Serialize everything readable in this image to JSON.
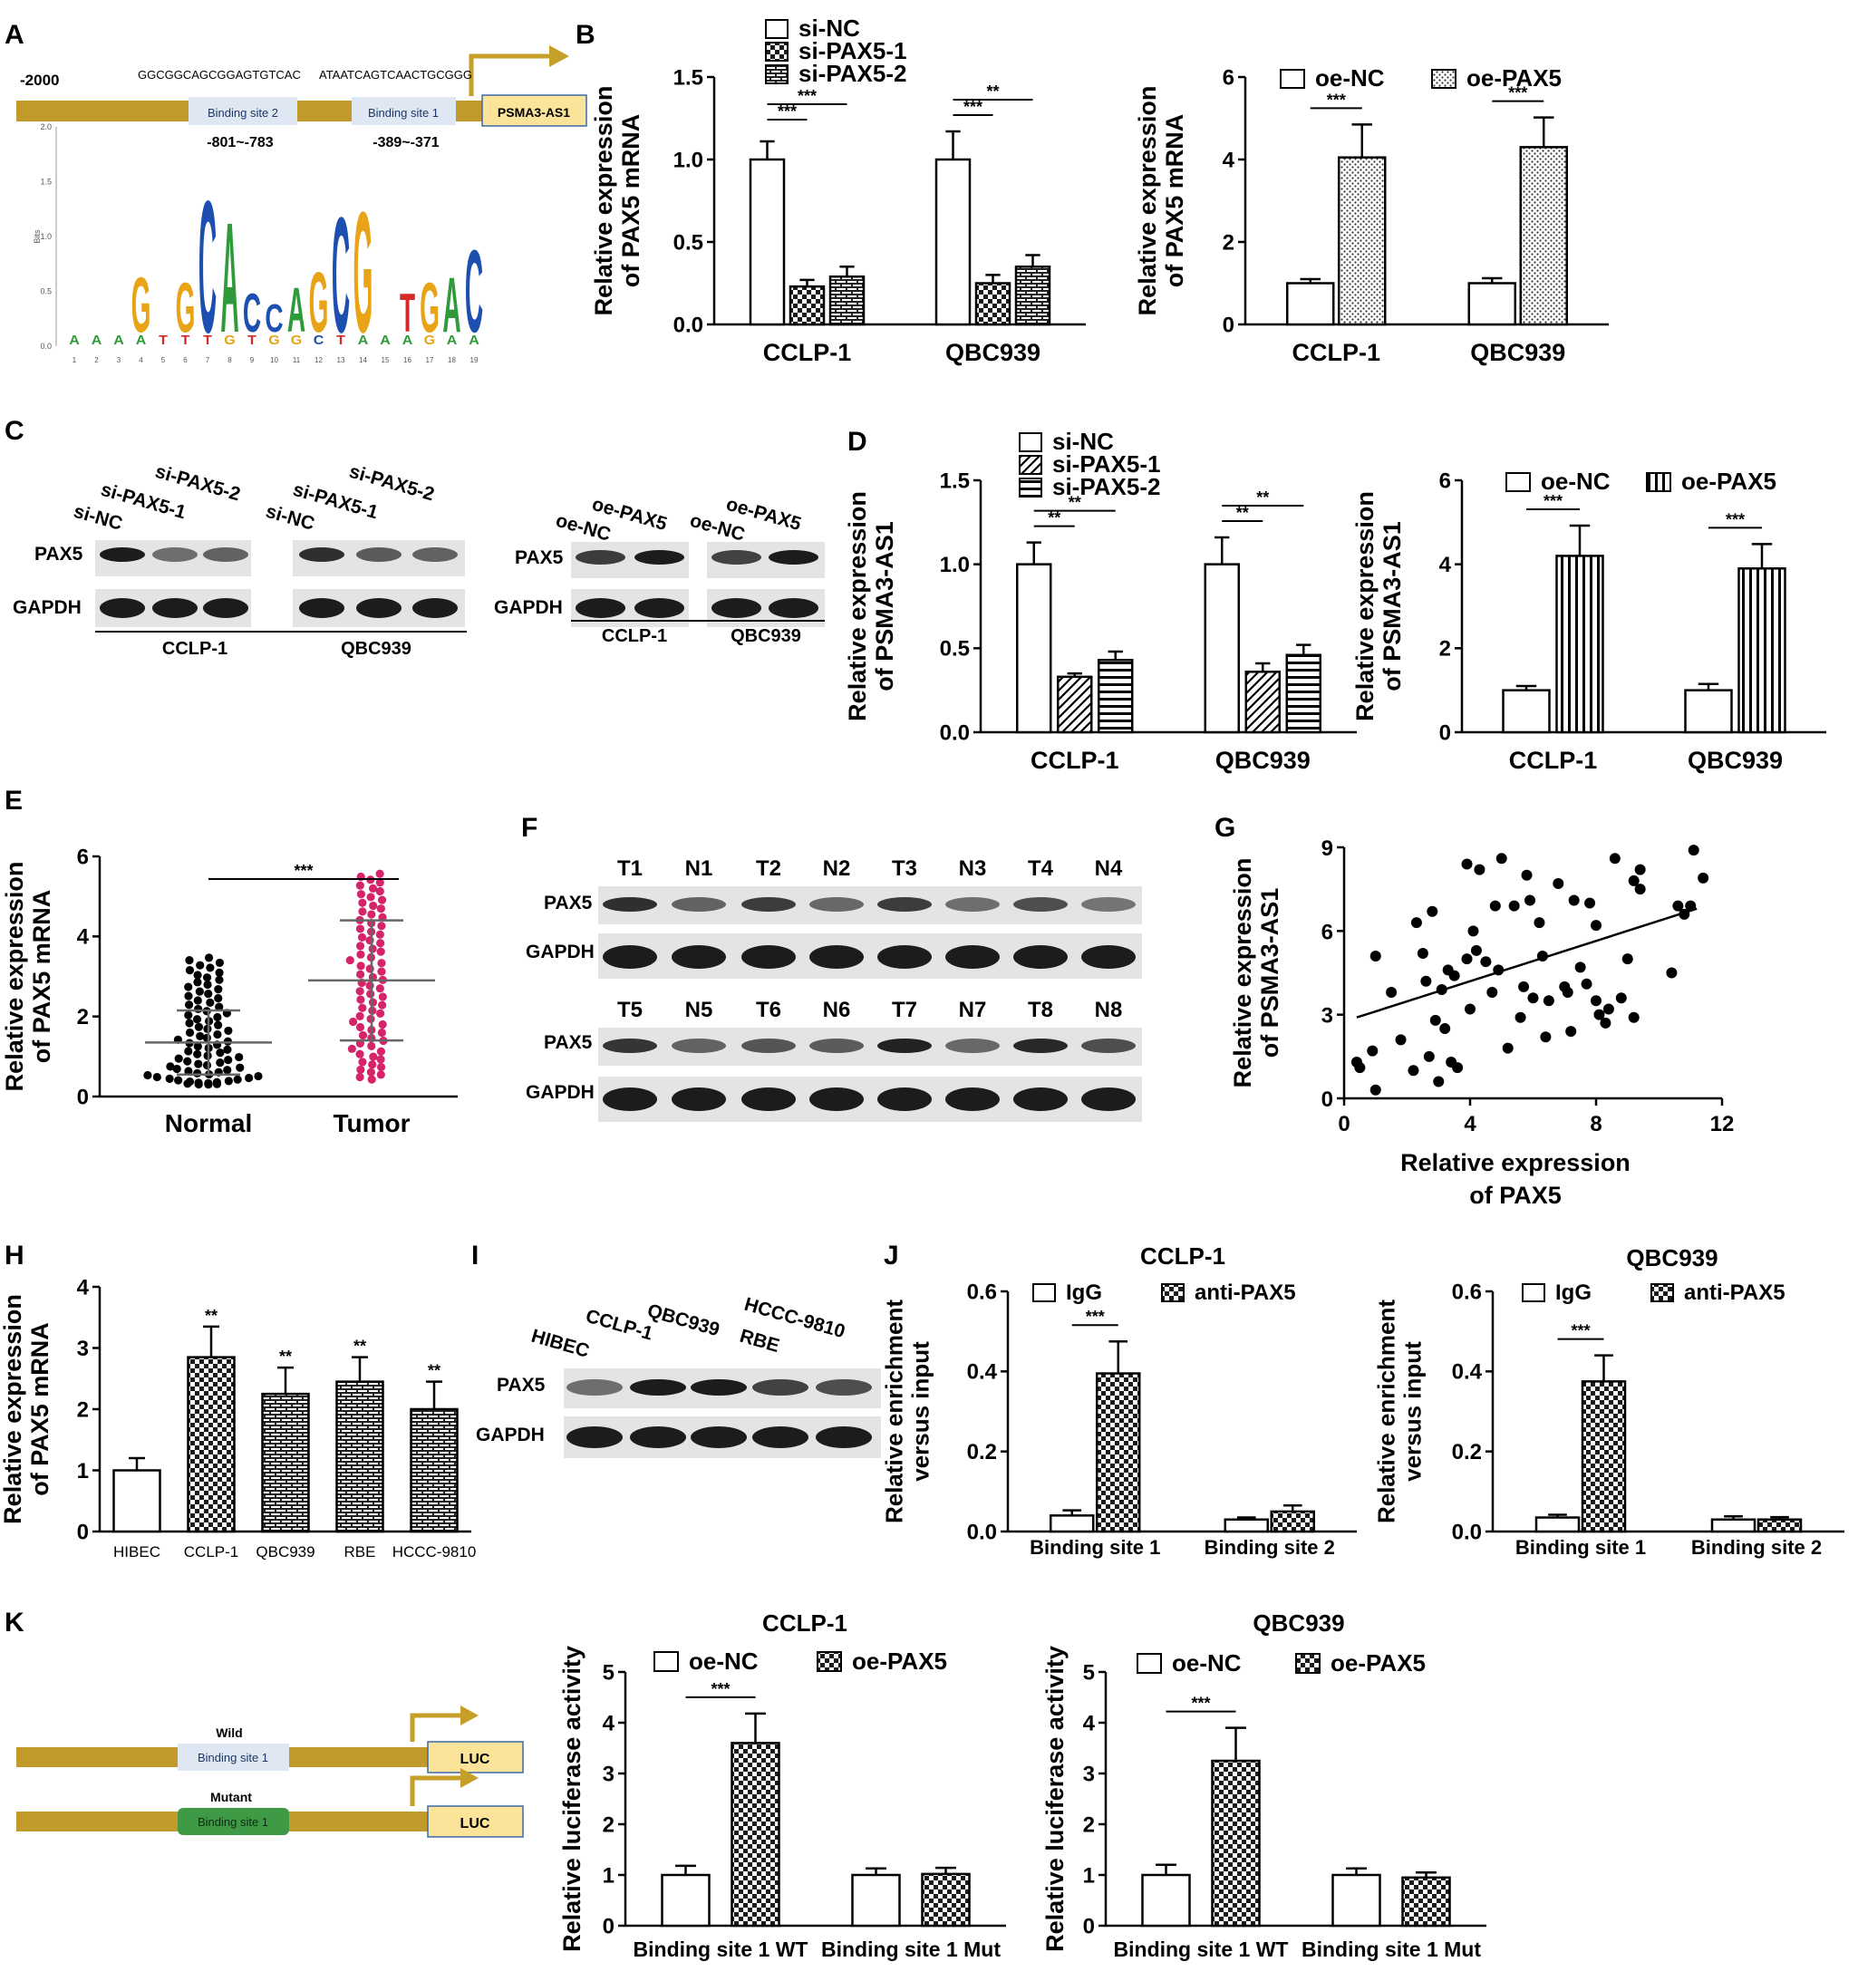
{
  "colors": {
    "promoter": "#c09a2b",
    "arrow": "#c59f28",
    "gene_box": "#fbe49a",
    "site_box": "#dfe7f3",
    "mutant_box": "#3f9a45",
    "tumor": "#d6246a"
  },
  "panels": {
    "A": "A",
    "B": "B",
    "C": "C",
    "D": "D",
    "E": "E",
    "F": "F",
    "G": "G",
    "H": "H",
    "I": "I",
    "J": "J",
    "K": "K"
  },
  "promoter_map": {
    "start": "-2000",
    "seq2": "GGCGGCAGCGGAGTGTCAC",
    "seq1": "ATAATCAGTCAACTGCGGG",
    "site2": "Binding site 2",
    "site1": "Binding site 1",
    "gene": "PSMA3-AS1",
    "pos2": "-801~-783",
    "pos1": "-389~-371"
  },
  "motif": {
    "ylabel": "Bits",
    "yticks": [
      "2.0",
      "1.5",
      "1.0",
      "0.5",
      "0.0"
    ],
    "positions": [
      "1",
      "2",
      "3",
      "4",
      "5",
      "6",
      "7",
      "8",
      "9",
      "10",
      "11",
      "12",
      "13",
      "14",
      "15",
      "16",
      "17",
      "18",
      "19"
    ],
    "top_letters": [
      "",
      "",
      "",
      "G",
      "",
      "G",
      "C",
      "A",
      "C",
      "C",
      "A",
      "G",
      "C",
      "G",
      "",
      "T",
      "G",
      "A",
      "C"
    ],
    "sub_letters": [
      "A",
      "A",
      "A",
      "A",
      "T",
      "T",
      "T",
      "G",
      "T",
      "G",
      "G",
      "C",
      "T",
      "A",
      "A",
      "A",
      "G",
      "A",
      "A"
    ]
  },
  "blots": {
    "C_left": {
      "lanes": [
        "si-NC",
        "si-PAX5-1",
        "si-PAX5-2",
        "si-NC",
        "si-PAX5-1",
        "si-PAX5-2"
      ],
      "rows": [
        "PAX5",
        "GAPDH"
      ],
      "groups": [
        "CCLP-1",
        "QBC939"
      ]
    },
    "C_right": {
      "lanes": [
        "oe-NC",
        "oe-PAX5",
        "oe-NC",
        "oe-PAX5"
      ],
      "rows": [
        "PAX5",
        "GAPDH"
      ],
      "groups": [
        "CCLP-1",
        "QBC939"
      ]
    },
    "F": {
      "row1": [
        "T1",
        "N1",
        "T2",
        "N2",
        "T3",
        "N3",
        "T4",
        "N4"
      ],
      "row2": [
        "T5",
        "N5",
        "T6",
        "N6",
        "T7",
        "N7",
        "T8",
        "N8"
      ],
      "rows": [
        "PAX5",
        "GAPDH"
      ]
    },
    "I": {
      "lanes": [
        "HIBEC",
        "CCLP-1",
        "QBC939",
        "RBE",
        "HCCC-9810"
      ],
      "rows": [
        "PAX5",
        "GAPDH"
      ]
    }
  },
  "constructs": {
    "wild": "Wild",
    "mutant": "Mutant",
    "site": "Binding site 1",
    "gene": "LUC"
  },
  "chart_data": [
    {
      "id": "B_si",
      "type": "bar",
      "categories": [
        "CCLP-1",
        "QBC939"
      ],
      "ylabel": "Relative expression\nof PAX5 mRNA",
      "ylim": [
        0,
        1.5
      ],
      "ticks": [
        "0.0",
        "0.5",
        "1.0",
        "1.5"
      ],
      "series": [
        {
          "name": "si-NC",
          "pattern": "white",
          "values": [
            1.0,
            1.0
          ],
          "err": [
            0.11,
            0.17
          ]
        },
        {
          "name": "si-PAX5-1",
          "pattern": "checker",
          "values": [
            0.23,
            0.25
          ],
          "err": [
            0.04,
            0.05
          ]
        },
        {
          "name": "si-PAX5-2",
          "pattern": "brick",
          "values": [
            0.29,
            0.35
          ],
          "err": [
            0.06,
            0.07
          ]
        }
      ],
      "sig": [
        {
          "g": 0,
          "a": 0,
          "b": 1,
          "t": "***",
          "lvl": 0
        },
        {
          "g": 0,
          "a": 0,
          "b": 2,
          "t": "***",
          "lvl": 1
        },
        {
          "g": 1,
          "a": 0,
          "b": 1,
          "t": "***",
          "lvl": 0
        },
        {
          "g": 1,
          "a": 0,
          "b": 2,
          "t": "**",
          "lvl": 1
        }
      ]
    },
    {
      "id": "B_oe",
      "type": "bar",
      "categories": [
        "CCLP-1",
        "QBC939"
      ],
      "ylabel": "Relative expression\nof PAX5 mRNA",
      "ylim": [
        0,
        6
      ],
      "ticks": [
        "0",
        "2",
        "4",
        "6"
      ],
      "series": [
        {
          "name": "oe-NC",
          "pattern": "white",
          "values": [
            1.0,
            1.0
          ],
          "err": [
            0.1,
            0.12
          ]
        },
        {
          "name": "oe-PAX5",
          "pattern": "dots",
          "values": [
            4.05,
            4.3
          ],
          "err": [
            0.8,
            0.72
          ]
        }
      ],
      "sig": [
        {
          "g": 0,
          "a": 0,
          "b": 1,
          "t": "***",
          "lvl": 0
        },
        {
          "g": 1,
          "a": 0,
          "b": 1,
          "t": "***",
          "lvl": 0
        }
      ]
    },
    {
      "id": "D_si",
      "type": "bar",
      "categories": [
        "CCLP-1",
        "QBC939"
      ],
      "ylabel": "Relative expression\nof PSMA3-AS1",
      "ylim": [
        0,
        1.5
      ],
      "ticks": [
        "0.0",
        "0.5",
        "1.0",
        "1.5"
      ],
      "series": [
        {
          "name": "si-NC",
          "pattern": "white",
          "values": [
            1.0,
            1.0
          ],
          "err": [
            0.13,
            0.16
          ]
        },
        {
          "name": "si-PAX5-1",
          "pattern": "diag",
          "values": [
            0.33,
            0.36
          ],
          "err": [
            0.02,
            0.05
          ]
        },
        {
          "name": "si-PAX5-2",
          "pattern": "hlines",
          "values": [
            0.43,
            0.46
          ],
          "err": [
            0.05,
            0.06
          ]
        }
      ],
      "sig": [
        {
          "g": 0,
          "a": 0,
          "b": 1,
          "t": "**",
          "lvl": 0
        },
        {
          "g": 0,
          "a": 0,
          "b": 2,
          "t": "**",
          "lvl": 1
        },
        {
          "g": 1,
          "a": 0,
          "b": 1,
          "t": "**",
          "lvl": 0
        },
        {
          "g": 1,
          "a": 0,
          "b": 2,
          "t": "**",
          "lvl": 1
        }
      ]
    },
    {
      "id": "D_oe",
      "type": "bar",
      "categories": [
        "CCLP-1",
        "QBC939"
      ],
      "ylabel": "Relative expression\nof PSMA3-AS1",
      "ylim": [
        0,
        6
      ],
      "ticks": [
        "0",
        "2",
        "4",
        "6"
      ],
      "series": [
        {
          "name": "oe-NC",
          "pattern": "white",
          "values": [
            1.0,
            1.0
          ],
          "err": [
            0.1,
            0.15
          ]
        },
        {
          "name": "oe-PAX5",
          "pattern": "vlines",
          "values": [
            4.2,
            3.9
          ],
          "err": [
            0.72,
            0.58
          ]
        }
      ],
      "sig": [
        {
          "g": 0,
          "a": 0,
          "b": 1,
          "t": "***",
          "lvl": 0
        },
        {
          "g": 1,
          "a": 0,
          "b": 1,
          "t": "***",
          "lvl": 0
        }
      ]
    },
    {
      "id": "E",
      "type": "scatter",
      "categories": [
        "Normal",
        "Tumor"
      ],
      "ylabel": "Relative expression\nof PAX5 mRNA",
      "ylim": [
        0,
        6
      ],
      "ticks": [
        "0",
        "2",
        "4",
        "6"
      ],
      "groups": [
        {
          "name": "Normal",
          "mean": 1.35,
          "sd": 0.8,
          "min": 0.3,
          "max": 3.5,
          "n": 80,
          "color": "#000000"
        },
        {
          "name": "Tumor",
          "mean": 2.9,
          "sd": 1.5,
          "min": 0.4,
          "max": 5.6,
          "n": 75,
          "color": "#d6246a"
        }
      ],
      "sig": "***"
    },
    {
      "id": "G",
      "type": "scatter",
      "xlabel": "Relative expression\nof PAX5",
      "ylabel": "Relative expression\nof PSMA3-AS1",
      "xlim": [
        0,
        12
      ],
      "ylim": [
        0,
        9
      ],
      "xticks": [
        "0",
        "4",
        "8",
        "12"
      ],
      "yticks": [
        "0",
        "3",
        "6",
        "9"
      ],
      "fit": {
        "x0": 0.4,
        "y0": 2.9,
        "x1": 11.2,
        "y1": 6.8
      },
      "points": [
        [
          0.4,
          1.3
        ],
        [
          0.5,
          1.1
        ],
        [
          0.9,
          1.7
        ],
        [
          1.0,
          0.3
        ],
        [
          1.0,
          5.1
        ],
        [
          1.5,
          3.8
        ],
        [
          1.8,
          2.1
        ],
        [
          2.2,
          1.0
        ],
        [
          2.3,
          6.3
        ],
        [
          2.5,
          5.2
        ],
        [
          2.6,
          4.2
        ],
        [
          2.7,
          1.5
        ],
        [
          2.8,
          6.7
        ],
        [
          2.9,
          2.8
        ],
        [
          3.0,
          0.6
        ],
        [
          3.1,
          3.9
        ],
        [
          3.2,
          2.5
        ],
        [
          3.3,
          4.6
        ],
        [
          3.4,
          1.3
        ],
        [
          3.5,
          4.4
        ],
        [
          3.6,
          1.1
        ],
        [
          3.9,
          8.4
        ],
        [
          3.9,
          5.0
        ],
        [
          4.0,
          3.2
        ],
        [
          4.1,
          6.0
        ],
        [
          4.2,
          5.3
        ],
        [
          4.3,
          8.2
        ],
        [
          4.5,
          4.9
        ],
        [
          4.7,
          3.8
        ],
        [
          4.8,
          6.9
        ],
        [
          4.9,
          4.6
        ],
        [
          5.0,
          8.6
        ],
        [
          5.2,
          1.8
        ],
        [
          5.4,
          6.9
        ],
        [
          5.6,
          2.9
        ],
        [
          5.7,
          4.0
        ],
        [
          5.8,
          8.0
        ],
        [
          5.9,
          7.1
        ],
        [
          6.0,
          3.6
        ],
        [
          6.2,
          6.3
        ],
        [
          6.3,
          5.1
        ],
        [
          6.4,
          2.2
        ],
        [
          6.5,
          3.5
        ],
        [
          6.8,
          7.7
        ],
        [
          7.0,
          4.0
        ],
        [
          7.1,
          3.8
        ],
        [
          7.2,
          2.4
        ],
        [
          7.3,
          7.1
        ],
        [
          7.5,
          4.7
        ],
        [
          7.7,
          4.1
        ],
        [
          7.8,
          7.0
        ],
        [
          8.0,
          6.2
        ],
        [
          8.0,
          3.5
        ],
        [
          8.1,
          3.0
        ],
        [
          8.3,
          2.7
        ],
        [
          8.4,
          3.2
        ],
        [
          8.6,
          8.6
        ],
        [
          8.8,
          3.6
        ],
        [
          9.0,
          5.0
        ],
        [
          9.2,
          2.9
        ],
        [
          9.2,
          7.8
        ],
        [
          9.4,
          8.2
        ],
        [
          9.4,
          7.5
        ],
        [
          10.4,
          4.5
        ],
        [
          10.6,
          6.9
        ],
        [
          10.8,
          6.6
        ],
        [
          11.0,
          6.9
        ],
        [
          11.1,
          8.9
        ],
        [
          11.4,
          7.9
        ]
      ]
    },
    {
      "id": "H",
      "type": "bar",
      "categories": [
        "HIBEC",
        "CCLP-1",
        "QBC939",
        "RBE",
        "HCCC-9810"
      ],
      "ylabel": "Relative expression\nof PAX5 mRNA",
      "ylim": [
        0,
        4
      ],
      "ticks": [
        "0",
        "1",
        "2",
        "3",
        "4"
      ],
      "values": [
        1.0,
        2.85,
        2.25,
        2.45,
        2.0
      ],
      "err": [
        0.2,
        0.5,
        0.43,
        0.4,
        0.45
      ],
      "patterns": [
        "white",
        "checker",
        "brick",
        "brick",
        "brick"
      ],
      "stars": [
        "",
        "**",
        "**",
        "**",
        "**"
      ]
    },
    {
      "id": "J_c",
      "type": "bar",
      "title": "CCLP-1",
      "categories": [
        "Binding site 1",
        "Binding site 2"
      ],
      "ylabel": "Relative enrichment\nversus input",
      "ylim": [
        0,
        0.6
      ],
      "ticks": [
        "0.0",
        "0.2",
        "0.4",
        "0.6"
      ],
      "series": [
        {
          "name": "IgG",
          "pattern": "white",
          "values": [
            0.04,
            0.03
          ],
          "err": [
            0.013,
            0.005
          ]
        },
        {
          "name": "anti-PAX5",
          "pattern": "checker",
          "values": [
            0.395,
            0.05
          ],
          "err": [
            0.08,
            0.015
          ]
        }
      ],
      "sig": [
        {
          "g": 0,
          "a": 0,
          "b": 1,
          "t": "***",
          "lvl": 0
        }
      ]
    },
    {
      "id": "J_q",
      "type": "bar",
      "title": "QBC939",
      "categories": [
        "Binding site 1",
        "Binding site 2"
      ],
      "ylabel": "Relative enrichment\nversus input",
      "ylim": [
        0,
        0.6
      ],
      "ticks": [
        "0.0",
        "0.2",
        "0.4",
        "0.6"
      ],
      "series": [
        {
          "name": "IgG",
          "pattern": "white",
          "values": [
            0.035,
            0.03
          ],
          "err": [
            0.007,
            0.008
          ]
        },
        {
          "name": "anti-PAX5",
          "pattern": "checker",
          "values": [
            0.375,
            0.03
          ],
          "err": [
            0.065,
            0.006
          ]
        }
      ],
      "sig": [
        {
          "g": 0,
          "a": 0,
          "b": 1,
          "t": "***",
          "lvl": 0
        }
      ]
    },
    {
      "id": "K_c",
      "type": "bar",
      "title": "CCLP-1",
      "categories": [
        "Binding site 1 WT",
        "Binding site 1 Mut"
      ],
      "ylabel": "Relative luciferase activity",
      "ylim": [
        0,
        5
      ],
      "ticks": [
        "0",
        "1",
        "2",
        "3",
        "4",
        "5"
      ],
      "series": [
        {
          "name": "oe-NC",
          "pattern": "white",
          "values": [
            1.0,
            1.0
          ],
          "err": [
            0.18,
            0.13
          ]
        },
        {
          "name": "oe-PAX5",
          "pattern": "checker",
          "values": [
            3.6,
            1.02
          ],
          "err": [
            0.58,
            0.12
          ]
        }
      ],
      "sig": [
        {
          "g": 0,
          "a": 0,
          "b": 1,
          "t": "***",
          "lvl": 0
        }
      ]
    },
    {
      "id": "K_q",
      "type": "bar",
      "title": "QBC939",
      "categories": [
        "Binding site 1 WT",
        "Binding site 1 Mut"
      ],
      "ylabel": "Relative luciferase activity",
      "ylim": [
        0,
        5
      ],
      "ticks": [
        "0",
        "1",
        "2",
        "3",
        "4",
        "5"
      ],
      "series": [
        {
          "name": "oe-NC",
          "pattern": "white",
          "values": [
            1.0,
            1.0
          ],
          "err": [
            0.2,
            0.13
          ]
        },
        {
          "name": "oe-PAX5",
          "pattern": "checker",
          "values": [
            3.25,
            0.95
          ],
          "err": [
            0.65,
            0.1
          ]
        }
      ],
      "sig": [
        {
          "g": 0,
          "a": 0,
          "b": 1,
          "t": "***",
          "lvl": 0
        }
      ]
    }
  ]
}
